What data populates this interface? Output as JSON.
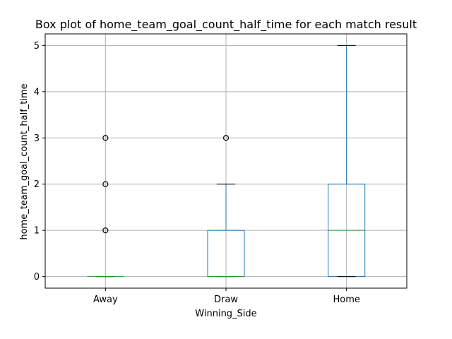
{
  "chart_data": {
    "type": "box",
    "title": "Box plot of home_team_goal_count_half_time for each match result",
    "xlabel": "Winning_Side",
    "ylabel": "home_team_goal_count_half_time",
    "categories": [
      "Away",
      "Draw",
      "Home"
    ],
    "ylim": [
      -0.25,
      5.25
    ],
    "yticks": [
      0,
      1,
      2,
      3,
      4,
      5
    ],
    "grid": true,
    "colors": {
      "box": "#1f77b4",
      "median": "#2ca02c",
      "whisker": "#1f77b4",
      "cap": "#000000",
      "flier": "#000000",
      "grid": "#b0b0b0"
    },
    "boxes": [
      {
        "category": "Away",
        "whislo": 0,
        "q1": 0,
        "median": 0,
        "q3": 0,
        "whishi": 0,
        "fliers": [
          1,
          2,
          3
        ]
      },
      {
        "category": "Draw",
        "whislo": 0,
        "q1": 0,
        "median": 0,
        "q3": 1,
        "whishi": 2,
        "fliers": [
          3
        ]
      },
      {
        "category": "Home",
        "whislo": 0,
        "q1": 0,
        "median": 1,
        "q3": 2,
        "whishi": 5,
        "fliers": []
      }
    ]
  }
}
